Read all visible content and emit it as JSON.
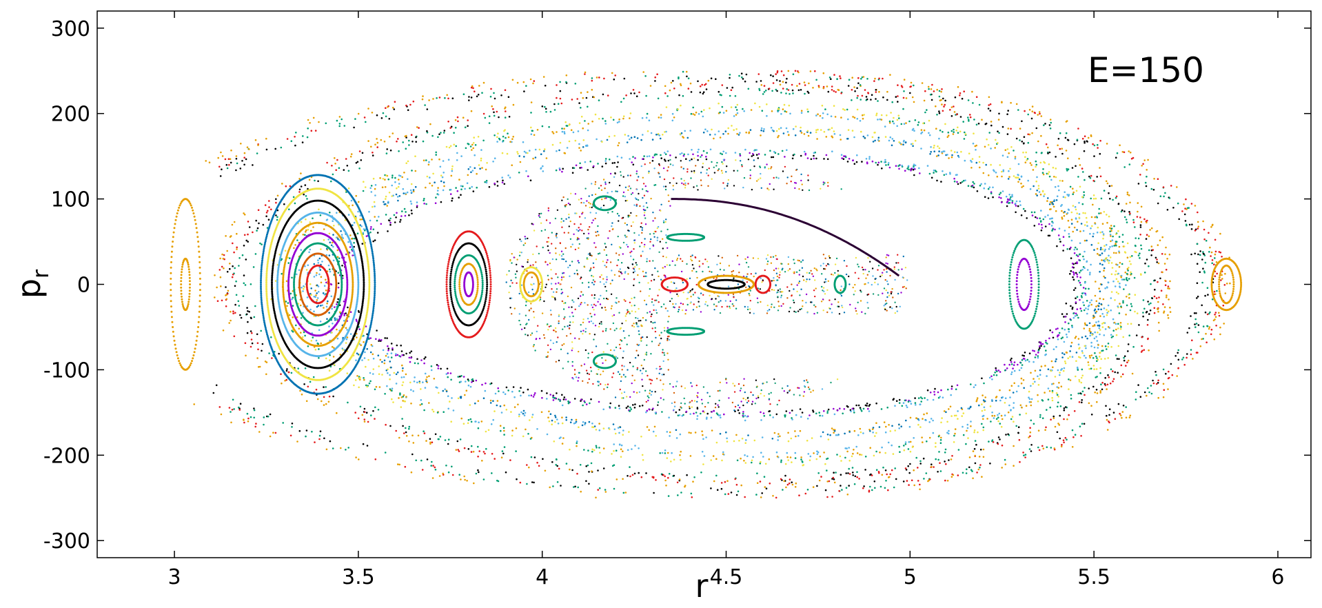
{
  "chart_data": {
    "type": "scatter",
    "title": "",
    "xlabel": "r",
    "ylabel": "p",
    "ylabel_subscript": "r",
    "annotation": "E=150",
    "xlim": [
      2.79,
      6.09
    ],
    "ylim": [
      -320,
      320
    ],
    "xticks": [
      {
        "value": 3,
        "label": "3"
      },
      {
        "value": 3.5,
        "label": "3.5"
      },
      {
        "value": 4,
        "label": "4"
      },
      {
        "value": 4.5,
        "label": "4.5"
      },
      {
        "value": 5,
        "label": "5"
      },
      {
        "value": 5.5,
        "label": "5.5"
      },
      {
        "value": 6,
        "label": "6"
      }
    ],
    "yticks": [
      {
        "value": 300,
        "label": "300"
      },
      {
        "value": 200,
        "label": "200"
      },
      {
        "value": 100,
        "label": "100"
      },
      {
        "value": 0,
        "label": "0"
      },
      {
        "value": -100,
        "label": "-100"
      },
      {
        "value": -200,
        "label": "-200"
      },
      {
        "value": -300,
        "label": "-300"
      }
    ],
    "grid": false,
    "legend": "none",
    "palette": [
      "#000000",
      "#e69f00",
      "#56b4e9",
      "#009e73",
      "#f0e442",
      "#0072b2",
      "#d55e00",
      "#9400d3",
      "#e41a1c",
      "#1a9e77"
    ],
    "rings": [
      {
        "cx": 3.39,
        "cy": 0,
        "radii": [
          [
            0.03,
            22
          ],
          [
            0.05,
            36
          ],
          [
            0.065,
            48
          ],
          [
            0.08,
            60
          ],
          [
            0.095,
            72
          ],
          [
            0.11,
            84
          ],
          [
            0.125,
            98
          ],
          [
            0.14,
            112
          ],
          [
            0.155,
            128
          ]
        ],
        "colors": [
          8,
          6,
          3,
          7,
          1,
          2,
          0,
          4,
          5
        ]
      },
      {
        "cx": 3.8,
        "cy": 0,
        "radii": [
          [
            0.012,
            14
          ],
          [
            0.025,
            24
          ],
          [
            0.038,
            34
          ],
          [
            0.05,
            48
          ],
          [
            0.06,
            62
          ]
        ],
        "colors": [
          7,
          1,
          3,
          0,
          8
        ]
      },
      {
        "cx": 3.97,
        "cy": 0,
        "radii": [
          [
            0.02,
            14
          ],
          [
            0.03,
            20
          ]
        ],
        "colors": [
          1,
          4
        ]
      },
      {
        "cx": 3.03,
        "cy": 0,
        "radii": [
          [
            0.012,
            30
          ],
          [
            0.04,
            100
          ]
        ],
        "colors": [
          1,
          1
        ]
      },
      {
        "cx": 5.31,
        "cy": 0,
        "radii": [
          [
            0.02,
            30
          ],
          [
            0.04,
            52
          ]
        ],
        "colors": [
          7,
          3
        ]
      },
      {
        "cx": 5.86,
        "cy": 0,
        "radii": [
          [
            0.02,
            22
          ],
          [
            0.04,
            30
          ]
        ],
        "colors": [
          1,
          1
        ]
      },
      {
        "cx": 4.36,
        "cy": 0,
        "radii": [
          [
            0.035,
            8
          ]
        ],
        "colors": [
          8
        ]
      },
      {
        "cx": 4.6,
        "cy": 0,
        "radii": [
          [
            0.02,
            10
          ]
        ],
        "colors": [
          8
        ]
      },
      {
        "cx": 4.81,
        "cy": 0,
        "radii": [
          [
            0.015,
            10
          ]
        ],
        "colors": [
          3
        ]
      },
      {
        "cx": 4.17,
        "cy": 95,
        "radii": [
          [
            0.03,
            8
          ]
        ],
        "colors": [
          3
        ]
      },
      {
        "cx": 4.17,
        "cy": -90,
        "radii": [
          [
            0.03,
            8
          ]
        ],
        "colors": [
          3
        ]
      },
      {
        "cx": 4.39,
        "cy": 55,
        "radii": [
          [
            0.05,
            4
          ]
        ],
        "colors": [
          3
        ]
      },
      {
        "cx": 4.39,
        "cy": -55,
        "radii": [
          [
            0.05,
            4
          ]
        ],
        "colors": [
          3
        ]
      },
      {
        "cx": 4.5,
        "cy": 0,
        "radii": [
          [
            0.05,
            5
          ],
          [
            0.075,
            10
          ]
        ],
        "colors": [
          0,
          1
        ]
      }
    ],
    "chaotic_sea": {
      "cx": 4.45,
      "rx": 0.55,
      "ry": 150
    },
    "arcs": [
      {
        "cx": 4.6,
        "cy": 0,
        "rx": 0.85,
        "ry": 150,
        "colors": [
          0,
          7,
          3,
          2
        ]
      },
      {
        "cx": 4.62,
        "cy": 0,
        "rx": 0.9,
        "ry": 175,
        "colors": [
          1,
          5,
          2,
          4
        ]
      },
      {
        "cx": 4.62,
        "cy": 0,
        "rx": 0.95,
        "ry": 200,
        "colors": [
          2,
          1,
          3,
          4
        ]
      },
      {
        "cx": 4.6,
        "cy": 0,
        "rx": 1.05,
        "ry": 225,
        "colors": [
          3,
          0,
          8,
          1
        ]
      },
      {
        "cx": 4.55,
        "cy": 0,
        "rx": 1.25,
        "ry": 242,
        "colors": [
          0,
          3,
          8,
          1
        ]
      }
    ]
  }
}
